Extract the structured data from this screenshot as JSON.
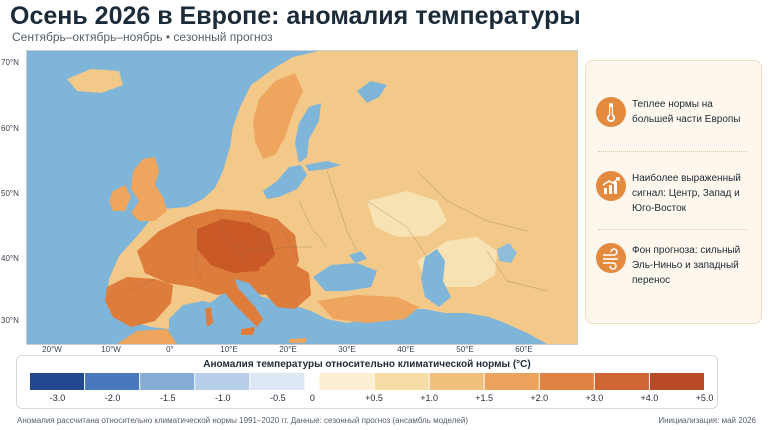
{
  "header": {
    "title": "Осень 2026 в Европе: аномалия температуры",
    "subtitle": "Сентябрь–октябрь–ноябрь • сезонный прогноз"
  },
  "map": {
    "lat_labels": [
      "70°N",
      "60°N",
      "50°N",
      "40°N",
      "30°N"
    ],
    "lon_labels": [
      "20°W",
      "10°W",
      "0°",
      "10°E",
      "20°E",
      "30°E",
      "40°E",
      "50°E",
      "60°E"
    ],
    "colors": {
      "sea": "#7fb5d8",
      "weak": "#f6e2b2",
      "light": "#f3c98a",
      "medium": "#eea65f",
      "strong": "#de7c3b",
      "strongest": "#c95a28",
      "border": "#8a6a4a"
    }
  },
  "sidebar": {
    "items": [
      {
        "icon": "thermometer-icon",
        "text": "Теплее нормы на большей части Европы"
      },
      {
        "icon": "rising-chart-icon",
        "text": "Наиболее выраженный сигнал: Центр, Запад и Юго-Восток"
      },
      {
        "icon": "wind-icon",
        "text": "Фон прогноза: сильный Эль-Ниньо и западный перенос"
      }
    ],
    "accent": "#e38a3e"
  },
  "legend": {
    "title": "Аномалия температуры относительно климатической нормы (°C)",
    "ticks": [
      "-3.0",
      "-2.0",
      "-1.5",
      "-1.0",
      "-0.5",
      "0",
      "+0.5",
      "+1.0",
      "+1.5",
      "+2.0",
      "+3.0",
      "+4.0",
      "+5.0"
    ],
    "colors": [
      "#22488f",
      "#4a78bd",
      "#86acd8",
      "#b7cfe8",
      "#dce7f3",
      "#fbeed2",
      "#f6dca5",
      "#f1c07d",
      "#eaa25c",
      "#df8343",
      "#cf6532",
      "#b84a26"
    ]
  },
  "footer": {
    "note": "Аномалия рассчитана относительно климатической нормы 1991–2020 гг. Данные: сезонный прогноз (ансамбль моделей)",
    "init": "Инициализация: май 2026"
  }
}
